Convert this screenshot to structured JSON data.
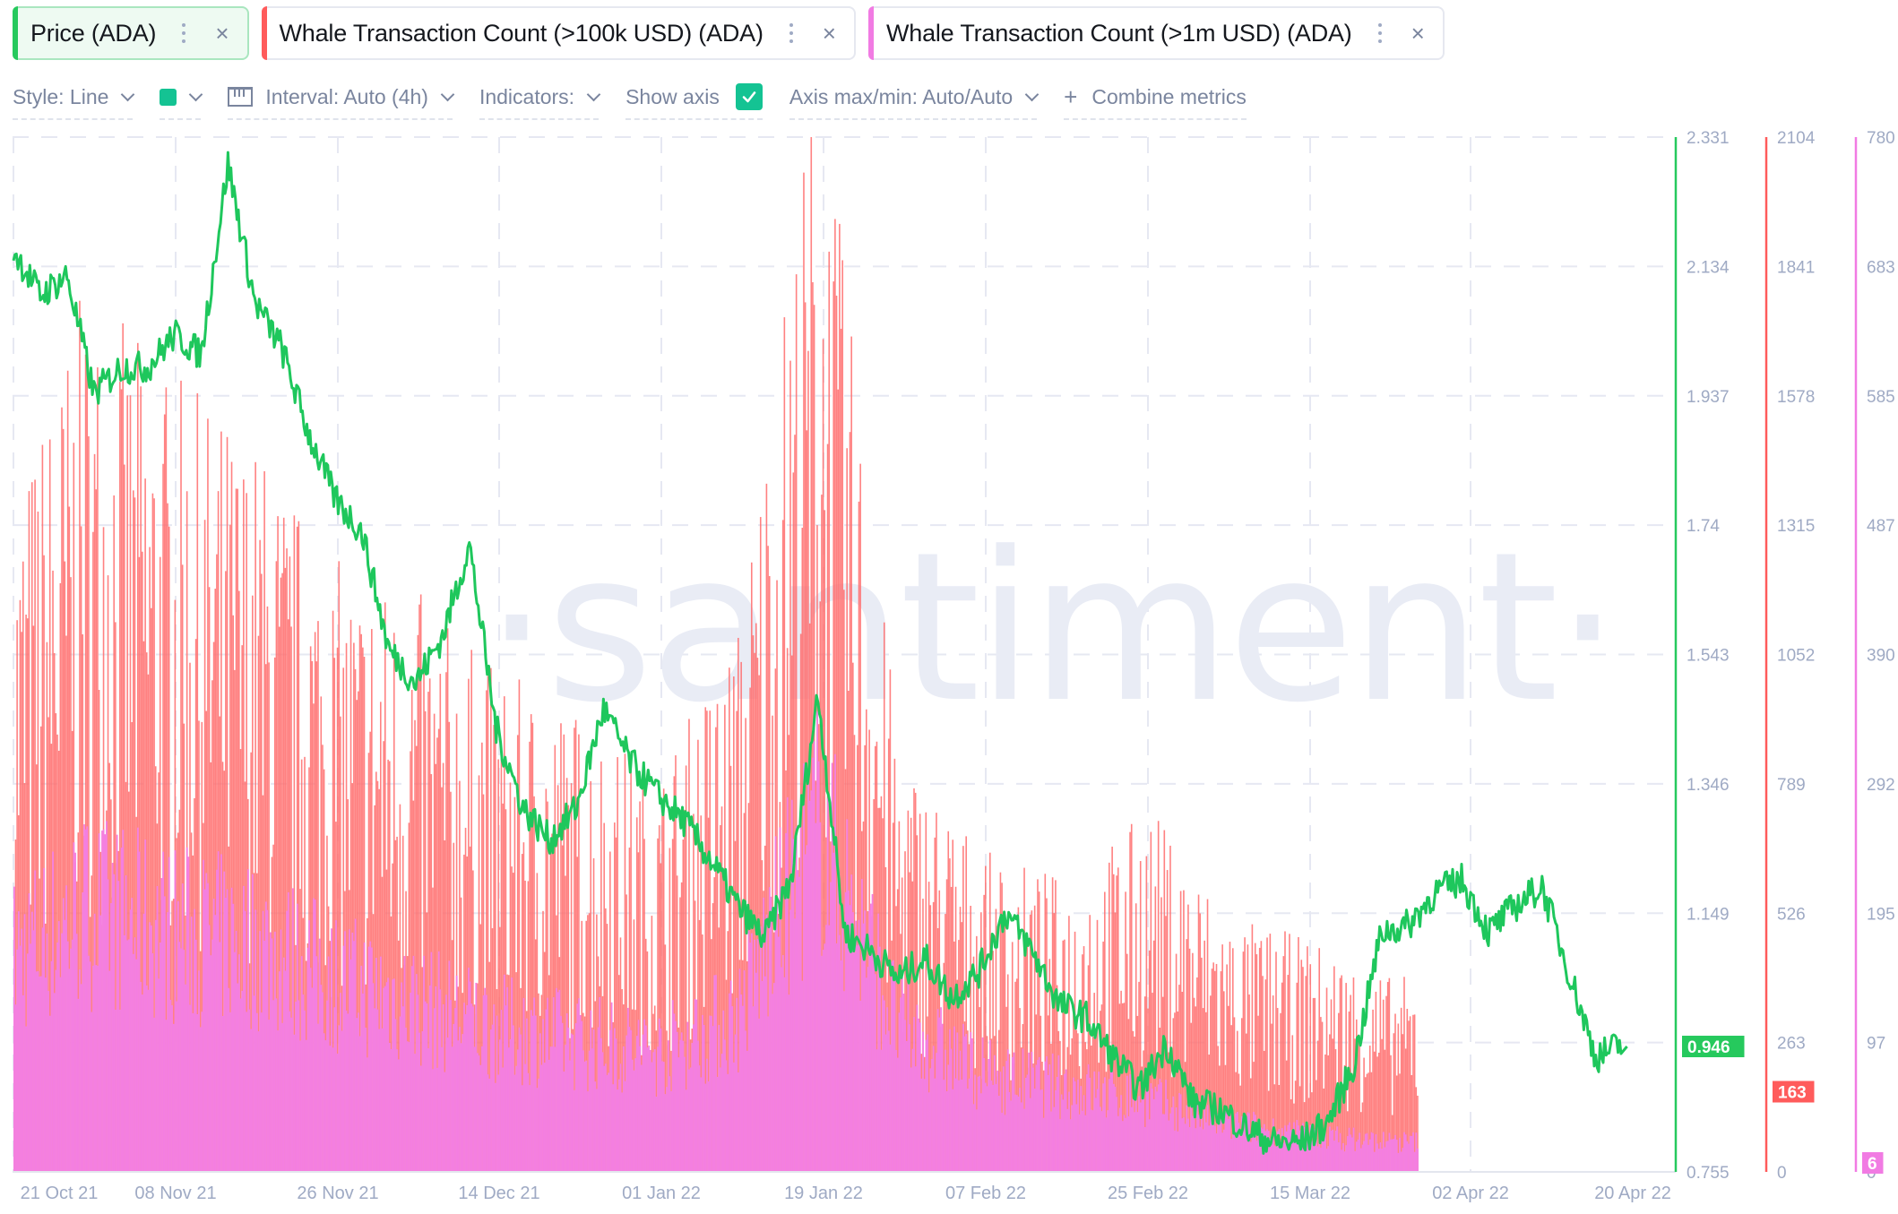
{
  "metrics": [
    {
      "label": "Price (ADA)",
      "color": "#26c95d",
      "active": true
    },
    {
      "label": "Whale Transaction Count (>100k USD) (ADA)",
      "color": "#ff5b5b",
      "active": false
    },
    {
      "label": "Whale Transaction Count (>1m USD) (ADA)",
      "color": "#f17be3",
      "active": false
    }
  ],
  "toolbar": {
    "style": "Style: Line",
    "swatch_color": "#14c393",
    "interval": "Interval: Auto (4h)",
    "indicators": "Indicators:",
    "show_axis": "Show axis",
    "show_axis_checked": true,
    "axis_maxmin": "Axis max/min: Auto/Auto",
    "combine": "Combine metrics"
  },
  "watermark": "·santiment·",
  "chart_data": {
    "type": "line",
    "title": "",
    "xlabel": "",
    "ylabel": "",
    "x_ticks": [
      "21 Oct 21",
      "08 Nov 21",
      "26 Nov 21",
      "14 Dec 21",
      "01 Jan 22",
      "19 Jan 22",
      "07 Feb 22",
      "25 Feb 22",
      "15 Mar 22",
      "02 Apr 22",
      "20 Apr 22"
    ],
    "grid": true,
    "axes": [
      {
        "name": "Price (ADA)",
        "color": "#26c95d",
        "ticks": [
          "2.331",
          "2.134",
          "1.937",
          "1.74",
          "1.543",
          "1.346",
          "1.149",
          "0.946",
          "0.755"
        ],
        "range": [
          0.755,
          2.331
        ],
        "current_value": "0.946"
      },
      {
        "name": "Whale Transaction Count (>100k USD) (ADA)",
        "color": "#ff5b5b",
        "ticks": [
          "2104",
          "1841",
          "1578",
          "1315",
          "1052",
          "789",
          "526",
          "263",
          "0"
        ],
        "range": [
          0,
          2104
        ],
        "current_value": "163"
      },
      {
        "name": "Whale Transaction Count (>1m USD) (ADA)",
        "color": "#f17be3",
        "ticks": [
          "780",
          "683",
          "585",
          "487",
          "390",
          "292",
          "195",
          "97",
          "0"
        ],
        "range": [
          0,
          780
        ],
        "current_value": "6"
      }
    ],
    "series": [
      {
        "name": "Price (ADA)",
        "type": "line",
        "color": "#26c95d",
        "x": [
          "18 Oct 21",
          "21 Oct 21",
          "24 Oct 21",
          "27 Oct 21",
          "30 Oct 21",
          "02 Nov 21",
          "05 Nov 21",
          "08 Nov 21",
          "11 Nov 21",
          "14 Nov 21",
          "17 Nov 21",
          "20 Nov 21",
          "23 Nov 21",
          "26 Nov 21",
          "29 Nov 21",
          "02 Dec 21",
          "05 Dec 21",
          "08 Dec 21",
          "11 Dec 21",
          "14 Dec 21",
          "17 Dec 21",
          "20 Dec 21",
          "23 Dec 21",
          "26 Dec 21",
          "29 Dec 21",
          "01 Jan 22",
          "04 Jan 22",
          "07 Jan 22",
          "10 Jan 22",
          "13 Jan 22",
          "16 Jan 22",
          "19 Jan 22",
          "22 Jan 22",
          "25 Jan 22",
          "28 Jan 22",
          "31 Jan 22",
          "03 Feb 22",
          "06 Feb 22",
          "09 Feb 22",
          "12 Feb 22",
          "15 Feb 22",
          "18 Feb 22",
          "21 Feb 22",
          "24 Feb 22",
          "27 Feb 22",
          "02 Mar 22",
          "05 Mar 22",
          "08 Mar 22",
          "11 Mar 22",
          "14 Mar 22",
          "17 Mar 22",
          "20 Mar 22",
          "23 Mar 22",
          "26 Mar 22",
          "29 Mar 22",
          "01 Apr 22",
          "04 Apr 22",
          "07 Apr 22",
          "10 Apr 22",
          "13 Apr 22",
          "16 Apr 22",
          "19 Apr 22"
        ],
        "values": [
          2.17,
          2.16,
          2.09,
          2.12,
          1.94,
          1.98,
          1.98,
          2.03,
          2.0,
          2.29,
          2.08,
          2.01,
          1.88,
          1.78,
          1.73,
          1.55,
          1.5,
          1.57,
          1.71,
          1.43,
          1.31,
          1.26,
          1.31,
          1.46,
          1.38,
          1.33,
          1.29,
          1.23,
          1.16,
          1.11,
          1.2,
          1.48,
          1.12,
          1.09,
          1.05,
          1.08,
          1.02,
          1.06,
          1.15,
          1.09,
          1.01,
          0.99,
          0.93,
          0.88,
          0.95,
          0.86,
          0.85,
          0.82,
          0.8,
          0.8,
          0.83,
          0.92,
          1.12,
          1.13,
          1.18,
          1.2,
          1.12,
          1.16,
          1.19,
          1.06,
          0.93,
          0.95
        ]
      },
      {
        "name": "Whale Transaction Count (>100k USD) (ADA)",
        "type": "bar",
        "color": "#ff5b5b",
        "x": [
          "21 Oct 21",
          "29 Oct 21",
          "08 Nov 21",
          "17 Nov 21",
          "26 Nov 21",
          "05 Dec 21",
          "14 Dec 21",
          "23 Dec 21",
          "01 Jan 22",
          "10 Jan 22",
          "19 Jan 22",
          "28 Jan 22",
          "07 Feb 22",
          "16 Feb 22",
          "25 Feb 22",
          "06 Mar 22",
          "15 Mar 22",
          "24 Mar 22"
        ],
        "values": [
          1100,
          1450,
          1300,
          1200,
          1000,
          950,
          820,
          760,
          650,
          900,
          1850,
          700,
          520,
          480,
          600,
          420,
          380,
          320
        ]
      },
      {
        "name": "Whale Transaction Count (>1m USD) (ADA)",
        "type": "bar",
        "color": "#f17be3",
        "x": [
          "21 Oct 21",
          "29 Oct 21",
          "08 Nov 21",
          "17 Nov 21",
          "26 Nov 21",
          "05 Dec 21",
          "14 Dec 21",
          "23 Dec 21",
          "01 Jan 22",
          "10 Jan 22",
          "19 Jan 22",
          "28 Jan 22",
          "07 Feb 22",
          "16 Feb 22",
          "25 Feb 22",
          "06 Mar 22",
          "15 Mar 22",
          "24 Mar 22"
        ],
        "values": [
          180,
          220,
          200,
          190,
          160,
          140,
          120,
          110,
          100,
          130,
          290,
          120,
          80,
          70,
          60,
          40,
          30,
          25
        ]
      }
    ]
  }
}
